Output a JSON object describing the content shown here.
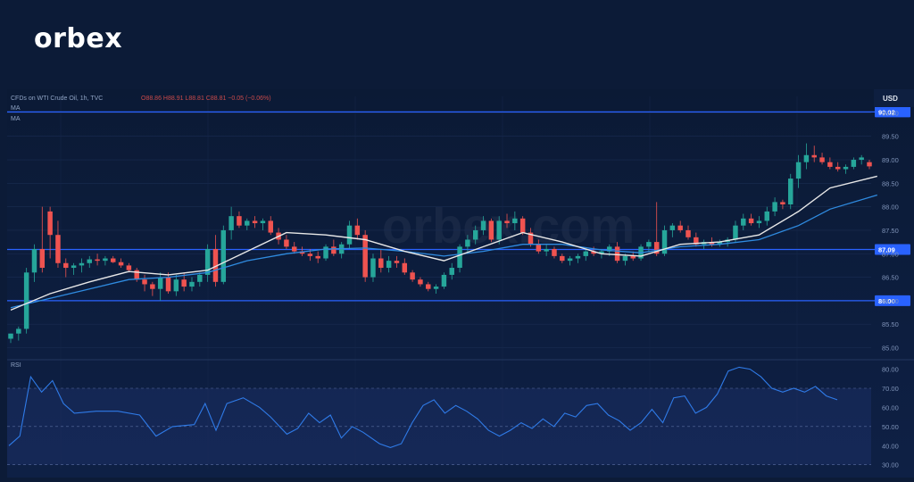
{
  "brand": {
    "logo_text": "orbex",
    "watermark": "orbex.com"
  },
  "legend": {
    "symbol_line": "CFDs on WTI Crude Oil, 1h, TVC",
    "ohlc": "O88.86  H88.91  L88.81  C88.81  −0.05 (−0.06%)",
    "ma1": "MA",
    "ma2": "MA",
    "rsi": "RSI"
  },
  "currency_label": "USD",
  "colors": {
    "up": "#26a69a",
    "down": "#ef5350",
    "ma_fast": "#e8e8e8",
    "ma_slow": "#2f8be0",
    "level_line": "#2962ff",
    "rsi_line": "#2f7be8",
    "background": "#0c1b37"
  },
  "chart_data": {
    "type": "candlestick",
    "price_axis": {
      "ticks": [
        "85.00",
        "85.50",
        "86.00",
        "86.50",
        "87.00",
        "87.50",
        "88.00",
        "88.50",
        "89.00",
        "89.50",
        "90.00"
      ],
      "ylim": [
        84.8,
        90.35
      ]
    },
    "levels": [
      {
        "value": 90.02,
        "label": "90.02"
      },
      {
        "value": 87.09,
        "label": "87.09"
      },
      {
        "value": 86.0,
        "label": "86.00"
      }
    ],
    "candles": [
      [
        85.19,
        85.3,
        85.1,
        85.3
      ],
      [
        85.3,
        85.45,
        85.15,
        85.4
      ],
      [
        85.4,
        86.7,
        85.3,
        86.6
      ],
      [
        86.6,
        87.2,
        86.4,
        87.1
      ],
      [
        87.1,
        88.0,
        86.6,
        86.7
      ],
      [
        87.9,
        88.0,
        86.9,
        87.4
      ],
      [
        87.4,
        87.7,
        86.7,
        86.8
      ],
      [
        86.8,
        86.9,
        86.5,
        86.7
      ],
      [
        86.7,
        86.8,
        86.55,
        86.75
      ],
      [
        86.75,
        86.9,
        86.6,
        86.8
      ],
      [
        86.8,
        86.95,
        86.7,
        86.88
      ],
      [
        86.88,
        87.0,
        86.75,
        86.85
      ],
      [
        86.85,
        86.95,
        86.75,
        86.9
      ],
      [
        86.9,
        86.95,
        86.8,
        86.82
      ],
      [
        86.82,
        86.9,
        86.7,
        86.75
      ],
      [
        86.75,
        86.8,
        86.6,
        86.65
      ],
      [
        86.65,
        86.7,
        86.4,
        86.45
      ],
      [
        86.45,
        86.55,
        86.2,
        86.35
      ],
      [
        86.35,
        86.4,
        86.1,
        86.25
      ],
      [
        86.25,
        86.6,
        86.0,
        86.5
      ],
      [
        86.5,
        86.6,
        86.15,
        86.2
      ],
      [
        86.2,
        86.55,
        86.1,
        86.45
      ],
      [
        86.45,
        86.6,
        86.2,
        86.3
      ],
      [
        86.3,
        86.5,
        86.2,
        86.4
      ],
      [
        86.4,
        86.6,
        86.3,
        86.55
      ],
      [
        86.55,
        87.2,
        86.4,
        87.1
      ],
      [
        87.1,
        87.4,
        86.3,
        86.4
      ],
      [
        86.4,
        87.6,
        86.35,
        87.5
      ],
      [
        87.5,
        88.0,
        87.3,
        87.8
      ],
      [
        87.8,
        87.9,
        87.55,
        87.6
      ],
      [
        87.6,
        87.75,
        87.5,
        87.7
      ],
      [
        87.7,
        87.8,
        87.55,
        87.65
      ],
      [
        87.65,
        87.75,
        87.5,
        87.7
      ],
      [
        87.7,
        87.8,
        87.4,
        87.45
      ],
      [
        87.45,
        87.55,
        87.2,
        87.3
      ],
      [
        87.3,
        87.4,
        87.1,
        87.15
      ],
      [
        87.15,
        87.25,
        87.0,
        87.05
      ],
      [
        87.05,
        87.15,
        86.95,
        87.0
      ],
      [
        87.0,
        87.1,
        86.85,
        86.95
      ],
      [
        86.95,
        87.05,
        86.8,
        86.9
      ],
      [
        86.9,
        87.2,
        86.85,
        87.15
      ],
      [
        87.15,
        87.3,
        86.95,
        87.0
      ],
      [
        87.0,
        87.25,
        86.9,
        87.2
      ],
      [
        87.2,
        87.7,
        87.1,
        87.6
      ],
      [
        87.6,
        87.75,
        87.3,
        87.4
      ],
      [
        87.4,
        87.5,
        86.4,
        86.5
      ],
      [
        86.5,
        87.0,
        86.4,
        86.9
      ],
      [
        86.9,
        87.1,
        86.6,
        86.7
      ],
      [
        86.7,
        86.95,
        86.6,
        86.85
      ],
      [
        86.85,
        86.95,
        86.7,
        86.8
      ],
      [
        86.8,
        86.9,
        86.55,
        86.6
      ],
      [
        86.6,
        86.65,
        86.4,
        86.45
      ],
      [
        86.45,
        86.5,
        86.3,
        86.35
      ],
      [
        86.35,
        86.4,
        86.2,
        86.25
      ],
      [
        86.25,
        86.35,
        86.15,
        86.3
      ],
      [
        86.3,
        86.6,
        86.25,
        86.55
      ],
      [
        86.55,
        86.8,
        86.45,
        86.7
      ],
      [
        86.7,
        87.2,
        86.6,
        87.15
      ],
      [
        87.15,
        87.4,
        87.0,
        87.3
      ],
      [
        87.3,
        87.6,
        87.2,
        87.5
      ],
      [
        87.5,
        87.8,
        87.4,
        87.7
      ],
      [
        87.7,
        87.75,
        87.25,
        87.3
      ],
      [
        87.3,
        87.8,
        87.2,
        87.7
      ],
      [
        87.7,
        87.85,
        87.55,
        87.65
      ],
      [
        87.65,
        87.9,
        87.5,
        87.75
      ],
      [
        87.75,
        87.8,
        87.4,
        87.45
      ],
      [
        87.45,
        87.55,
        87.15,
        87.2
      ],
      [
        87.2,
        87.3,
        87.0,
        87.05
      ],
      [
        87.05,
        87.2,
        86.95,
        87.1
      ],
      [
        87.1,
        87.15,
        86.9,
        86.95
      ],
      [
        86.95,
        87.0,
        86.8,
        86.85
      ],
      [
        86.85,
        86.95,
        86.75,
        86.9
      ],
      [
        86.9,
        87.0,
        86.8,
        86.95
      ],
      [
        86.95,
        87.1,
        86.85,
        87.05
      ],
      [
        87.05,
        87.15,
        86.95,
        87.0
      ],
      [
        87.0,
        87.1,
        86.9,
        87.05
      ],
      [
        87.05,
        87.2,
        86.95,
        87.15
      ],
      [
        87.15,
        87.25,
        86.8,
        86.85
      ],
      [
        86.85,
        87.0,
        86.75,
        86.95
      ],
      [
        86.95,
        87.05,
        86.85,
        86.9
      ],
      [
        86.9,
        87.2,
        86.85,
        87.15
      ],
      [
        87.15,
        87.3,
        87.05,
        87.25
      ],
      [
        87.25,
        88.1,
        86.95,
        87.0
      ],
      [
        87.0,
        87.6,
        86.95,
        87.5
      ],
      [
        87.5,
        87.65,
        87.35,
        87.6
      ],
      [
        87.6,
        87.7,
        87.45,
        87.5
      ],
      [
        87.5,
        87.6,
        87.3,
        87.35
      ],
      [
        87.35,
        87.45,
        87.15,
        87.2
      ],
      [
        87.2,
        87.3,
        87.1,
        87.25
      ],
      [
        87.25,
        87.35,
        87.15,
        87.2
      ],
      [
        87.2,
        87.3,
        87.15,
        87.25
      ],
      [
        87.25,
        87.35,
        87.15,
        87.3
      ],
      [
        87.3,
        87.7,
        87.25,
        87.6
      ],
      [
        87.6,
        87.85,
        87.5,
        87.75
      ],
      [
        87.75,
        87.85,
        87.6,
        87.65
      ],
      [
        87.65,
        87.8,
        87.55,
        87.7
      ],
      [
        87.7,
        88.0,
        87.6,
        87.9
      ],
      [
        87.9,
        88.2,
        87.8,
        88.1
      ],
      [
        88.1,
        88.15,
        87.95,
        88.05
      ],
      [
        88.05,
        88.7,
        87.95,
        88.6
      ],
      [
        88.6,
        89.1,
        88.4,
        88.95
      ],
      [
        88.95,
        89.35,
        88.8,
        89.1
      ],
      [
        89.1,
        89.3,
        88.95,
        89.05
      ],
      [
        89.05,
        89.15,
        88.9,
        88.95
      ],
      [
        88.95,
        89.05,
        88.8,
        88.85
      ],
      [
        88.85,
        88.95,
        88.75,
        88.8
      ],
      [
        88.8,
        88.9,
        88.7,
        88.85
      ],
      [
        88.85,
        89.05,
        88.8,
        89.0
      ],
      [
        89.0,
        89.1,
        88.9,
        89.05
      ],
      [
        88.95,
        89.0,
        88.8,
        88.86
      ]
    ],
    "ma_fast": [
      [
        0,
        85.8
      ],
      [
        5,
        86.15
      ],
      [
        10,
        86.4
      ],
      [
        15,
        86.62
      ],
      [
        20,
        86.55
      ],
      [
        25,
        86.65
      ],
      [
        30,
        87.05
      ],
      [
        35,
        87.45
      ],
      [
        40,
        87.4
      ],
      [
        45,
        87.3
      ],
      [
        50,
        87.05
      ],
      [
        55,
        86.85
      ],
      [
        60,
        87.15
      ],
      [
        65,
        87.45
      ],
      [
        70,
        87.25
      ],
      [
        75,
        87.0
      ],
      [
        80,
        86.95
      ],
      [
        85,
        87.2
      ],
      [
        90,
        87.25
      ],
      [
        95,
        87.4
      ],
      [
        100,
        87.9
      ],
      [
        104,
        88.4
      ],
      [
        110,
        88.65
      ]
    ],
    "ma_slow": [
      [
        0,
        85.85
      ],
      [
        5,
        86.05
      ],
      [
        10,
        86.25
      ],
      [
        15,
        86.45
      ],
      [
        20,
        86.5
      ],
      [
        25,
        86.6
      ],
      [
        30,
        86.85
      ],
      [
        35,
        87.0
      ],
      [
        40,
        87.1
      ],
      [
        45,
        87.12
      ],
      [
        50,
        87.05
      ],
      [
        55,
        86.95
      ],
      [
        60,
        87.05
      ],
      [
        65,
        87.2
      ],
      [
        70,
        87.2
      ],
      [
        75,
        87.08
      ],
      [
        80,
        87.02
      ],
      [
        85,
        87.15
      ],
      [
        90,
        87.2
      ],
      [
        95,
        87.3
      ],
      [
        100,
        87.6
      ],
      [
        104,
        87.95
      ],
      [
        110,
        88.25
      ]
    ],
    "rsi": {
      "ticks": [
        "30.00",
        "40.00",
        "50.00",
        "60.00",
        "70.00",
        "80.00"
      ],
      "ylim": [
        28,
        84
      ],
      "bands": [
        30,
        50,
        70
      ],
      "values": [
        [
          0,
          40
        ],
        [
          2,
          45
        ],
        [
          4,
          76
        ],
        [
          6,
          68
        ],
        [
          8,
          74
        ],
        [
          10,
          62
        ],
        [
          12,
          57
        ],
        [
          16,
          58
        ],
        [
          20,
          58
        ],
        [
          24,
          56
        ],
        [
          27,
          45
        ],
        [
          30,
          50
        ],
        [
          34,
          51
        ],
        [
          36,
          62
        ],
        [
          38,
          48
        ],
        [
          40,
          62
        ],
        [
          43,
          65
        ],
        [
          46,
          60
        ],
        [
          48,
          55
        ],
        [
          51,
          46
        ],
        [
          53,
          49
        ],
        [
          55,
          57
        ],
        [
          57,
          52
        ],
        [
          59,
          56
        ],
        [
          61,
          44
        ],
        [
          63,
          50
        ],
        [
          65,
          47
        ],
        [
          68,
          41
        ],
        [
          70,
          39
        ],
        [
          72,
          41
        ],
        [
          74,
          52
        ],
        [
          76,
          61
        ],
        [
          78,
          64
        ],
        [
          80,
          57
        ],
        [
          82,
          61
        ],
        [
          84,
          58
        ],
        [
          86,
          54
        ],
        [
          88,
          48
        ],
        [
          90,
          45
        ],
        [
          92,
          48
        ],
        [
          94,
          52
        ],
        [
          96,
          49
        ],
        [
          98,
          54
        ],
        [
          100,
          50
        ],
        [
          102,
          57
        ],
        [
          104,
          55
        ],
        [
          106,
          61
        ],
        [
          108,
          62
        ],
        [
          110,
          56
        ],
        [
          112,
          53
        ],
        [
          114,
          48
        ],
        [
          116,
          52
        ],
        [
          118,
          59
        ],
        [
          120,
          52
        ],
        [
          122,
          65
        ],
        [
          124,
          66
        ],
        [
          126,
          57
        ],
        [
          128,
          60
        ],
        [
          130,
          67
        ],
        [
          132,
          79
        ],
        [
          134,
          81
        ],
        [
          136,
          80
        ],
        [
          138,
          76
        ],
        [
          140,
          70
        ],
        [
          142,
          68
        ],
        [
          144,
          70
        ],
        [
          146,
          68
        ],
        [
          148,
          71
        ],
        [
          150,
          66
        ],
        [
          152,
          64
        ]
      ]
    }
  }
}
